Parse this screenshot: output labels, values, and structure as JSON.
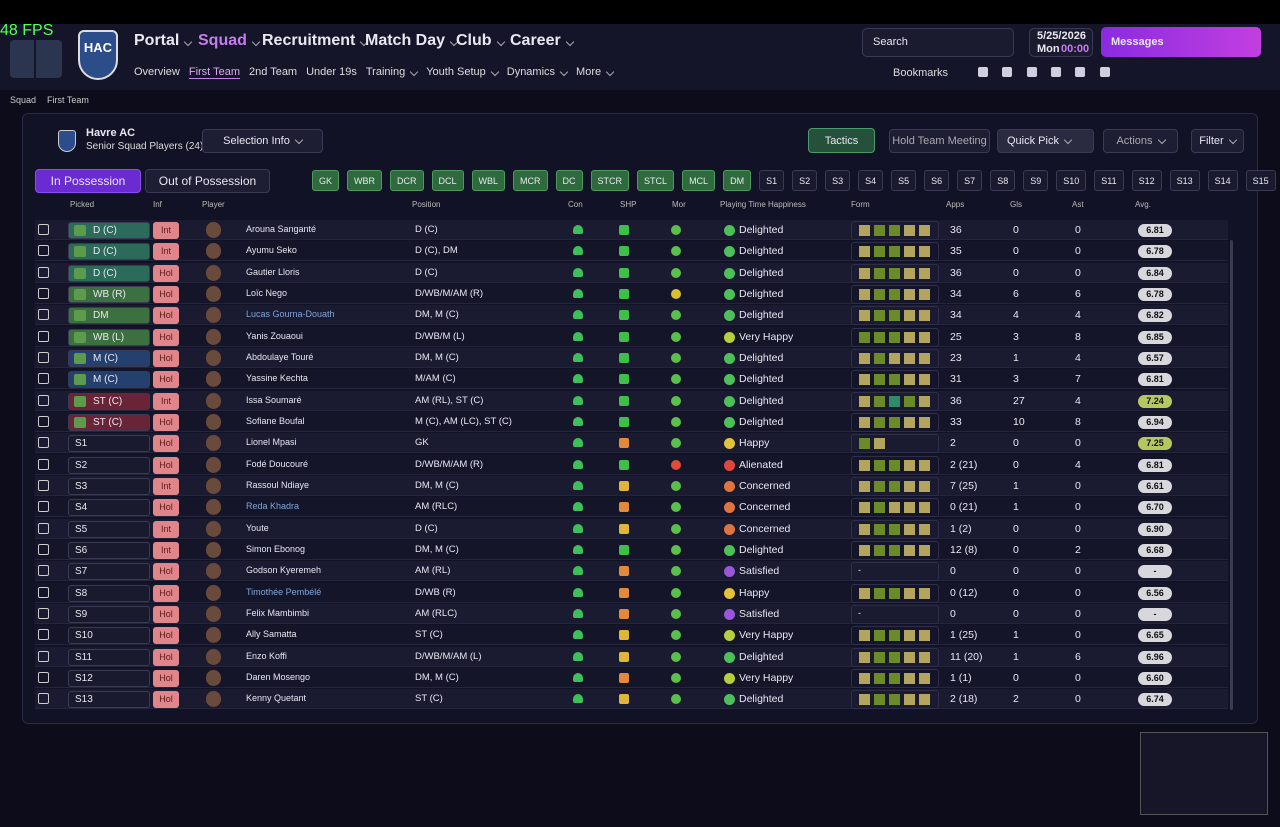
{
  "header": {
    "fps": "48 FPS",
    "logo": "HAC",
    "main_nav": [
      "Portal",
      "Squad",
      "Recruitment",
      "Match Day",
      "Club",
      "Career"
    ],
    "sub_nav": [
      "Overview",
      "First Team",
      "2nd Team",
      "Under 19s",
      "Training",
      "Youth Setup",
      "Dynamics",
      "More"
    ],
    "search": "Search",
    "date": "5/25/2026",
    "day": "Mon",
    "time": "00:00",
    "messages": "Messages",
    "bookmarks": "Bookmarks"
  },
  "breadcrumb": [
    "Squad",
    "First Team"
  ],
  "team": {
    "name": "Havre AC",
    "subtitle": "Senior Squad Players (24)"
  },
  "buttons": {
    "selection_info": "Selection Info",
    "tactics": "Tactics",
    "hold_meeting": "Hold Team Meeting",
    "quick_pick": "Quick Pick",
    "actions": "Actions",
    "filter": "Filter"
  },
  "tabs": [
    "In Possession",
    "Out of Possession"
  ],
  "positions": [
    "GK",
    "WBR",
    "DCR",
    "DCL",
    "WBL",
    "MCR",
    "DC",
    "STCR",
    "STCL",
    "MCL",
    "DM",
    "S1",
    "S2",
    "S3",
    "S4",
    "S5",
    "S6",
    "S7",
    "S8",
    "S9",
    "S10",
    "S11",
    "S12",
    "S13",
    "S14",
    "S15"
  ],
  "filled_positions": 11,
  "columns": [
    "Picked",
    "Inf",
    "Player",
    "Position",
    "Con",
    "SHP",
    "Mor",
    "Playing Time Happiness",
    "Form",
    "Apps",
    "Gls",
    "Ast",
    "Avg."
  ],
  "happiness_colors": {
    "Delighted": "#4fbf5a",
    "Very Happy": "#b6cf3c",
    "Happy": "#e3c23a",
    "Satisfied": "#9a55d8",
    "Concerned": "#e0733e",
    "Alienated": "#e0463e"
  },
  "rows": [
    {
      "picked": "D (C)",
      "pc": "#2c6a5a",
      "inf": "Int",
      "player": "Arouna Sanganté",
      "position": "D (C)",
      "shp": "c",
      "mor": "g",
      "happiness": "Delighted",
      "form": "yggyy",
      "apps": "36",
      "gls": "0",
      "ast": "0",
      "avg": "6.81"
    },
    {
      "picked": "D (C)",
      "pc": "#2c6a5a",
      "inf": "Int",
      "player": "Ayumu Seko",
      "position": "D (C), DM",
      "shp": "c",
      "mor": "g",
      "happiness": "Delighted",
      "form": "yggyy",
      "apps": "35",
      "gls": "0",
      "ast": "0",
      "avg": "6.78"
    },
    {
      "picked": "D (C)",
      "pc": "#2c6a5a",
      "inf": "Hol",
      "player": "Gautier Lloris",
      "position": "D (C)",
      "shp": "c",
      "mor": "g",
      "happiness": "Delighted",
      "form": "yggyy",
      "apps": "36",
      "gls": "0",
      "ast": "0",
      "avg": "6.84"
    },
    {
      "picked": "WB (R)",
      "pc": "#3c7040",
      "inf": "Hol",
      "player": "Loïc Nego",
      "position": "D/WB/M/AM (R)",
      "shp": "c",
      "mor": "y",
      "happiness": "Delighted",
      "form": "yggyy",
      "apps": "34",
      "gls": "6",
      "ast": "6",
      "avg": "6.78"
    },
    {
      "picked": "DM",
      "pc": "#3c7040",
      "inf": "Hol",
      "player": "Lucas Gourna-Douath",
      "color": "#7fa6d8",
      "position": "DM, M (C)",
      "shp": "c",
      "mor": "g",
      "happiness": "Delighted",
      "form": "yggyy",
      "apps": "34",
      "gls": "4",
      "ast": "4",
      "avg": "6.82"
    },
    {
      "picked": "WB (L)",
      "pc": "#3c7040",
      "inf": "Hol",
      "player": "Yanis Zouaoui",
      "position": "D/WB/M (L)",
      "shp": "c",
      "mor": "g",
      "happiness": "Very Happy",
      "form": "gggyy",
      "apps": "25",
      "gls": "3",
      "ast": "8",
      "avg": "6.85"
    },
    {
      "picked": "M (C)",
      "pc": "#24406e",
      "inf": "Hol",
      "player": "Abdoulaye Touré",
      "position": "DM, M (C)",
      "shp": "u",
      "mor": "g",
      "happiness": "Delighted",
      "form": "ygyyy",
      "apps": "23",
      "gls": "1",
      "ast": "4",
      "avg": "6.57"
    },
    {
      "picked": "M (C)",
      "pc": "#24406e",
      "inf": "Hol",
      "player": "Yassine Kechta",
      "position": "M/AM (C)",
      "shp": "c",
      "mor": "g",
      "happiness": "Delighted",
      "form": "yggyy",
      "apps": "31",
      "gls": "3",
      "ast": "7",
      "avg": "6.81"
    },
    {
      "picked": "ST (C)",
      "pc": "#6a2438",
      "inf": "Int",
      "player": "Issa Soumaré",
      "position": "AM (RL), ST (C)",
      "shp": "c",
      "mor": "g",
      "happiness": "Delighted",
      "form": "ygtgy",
      "apps": "36",
      "gls": "27",
      "ast": "4",
      "avg": "7.24"
    },
    {
      "picked": "ST (C)",
      "pc": "#6a2438",
      "inf": "Hol",
      "player": "Sofiane Boufal",
      "position": "M (C), AM (LC), ST (C)",
      "shp": "c",
      "mor": "g",
      "happiness": "Delighted",
      "form": "yggyy",
      "apps": "33",
      "gls": "10",
      "ast": "8",
      "avg": "6.94"
    },
    {
      "picked": "S1",
      "inf": "Hol",
      "player": "Lionel Mpasi",
      "position": "GK",
      "shp": "o",
      "mor": "g",
      "happiness": "Happy",
      "form": "gy",
      "apps": "2",
      "gls": "0",
      "ast": "0",
      "avg": "7.25"
    },
    {
      "picked": "S2",
      "inf": "Hol",
      "player": "Fodé Doucouré",
      "position": "D/WB/M/AM (R)",
      "shp": "u",
      "mor": "r",
      "happiness": "Alienated",
      "form": "yggyy",
      "apps": "2 (21)",
      "gls": "0",
      "ast": "4",
      "avg": "6.81"
    },
    {
      "picked": "S3",
      "inf": "Int",
      "player": "Rassoul Ndiaye",
      "position": "DM, M (C)",
      "shp": "y",
      "mor": "g",
      "happiness": "Concerned",
      "form": "yggyy",
      "apps": "7 (25)",
      "gls": "1",
      "ast": "0",
      "avg": "6.61"
    },
    {
      "picked": "S4",
      "inf": "Hol",
      "player": "Reda Khadra",
      "color": "#7fa6d8",
      "position": "AM (RLC)",
      "shp": "o",
      "mor": "g",
      "happiness": "Concerned",
      "form": "ygyyy",
      "apps": "0 (21)",
      "gls": "1",
      "ast": "0",
      "avg": "6.70"
    },
    {
      "picked": "S5",
      "inf": "Int",
      "player": "Youte",
      "position": "D (C)",
      "shp": "y",
      "mor": "g",
      "happiness": "Concerned",
      "form": "yggyy",
      "apps": "1 (2)",
      "gls": "0",
      "ast": "0",
      "avg": "6.90"
    },
    {
      "picked": "S6",
      "inf": "Int",
      "player": "Simon Ebonog",
      "position": "DM, M (C)",
      "shp": "u",
      "mor": "g",
      "happiness": "Delighted",
      "form": "yggyy",
      "apps": "12 (8)",
      "gls": "0",
      "ast": "2",
      "avg": "6.68"
    },
    {
      "picked": "S7",
      "inf": "Hol",
      "player": "Godson Kyeremeh",
      "position": "AM (RL)",
      "shp": "o",
      "mor": "g",
      "happiness": "Satisfied",
      "form": "-",
      "apps": "0",
      "gls": "0",
      "ast": "0",
      "avg": "-"
    },
    {
      "picked": "S8",
      "inf": "Hol",
      "player": "Timothée Pembélé",
      "color": "#7fa6d8",
      "position": "D/WB (R)",
      "shp": "o",
      "mor": "g",
      "happiness": "Happy",
      "form": "yggyy",
      "apps": "0 (12)",
      "gls": "0",
      "ast": "0",
      "avg": "6.56"
    },
    {
      "picked": "S9",
      "inf": "Hol",
      "player": "Felix Mambimbi",
      "position": "AM (RLC)",
      "shp": "o",
      "mor": "g",
      "happiness": "Satisfied",
      "form": "-",
      "apps": "0",
      "gls": "0",
      "ast": "0",
      "avg": "-"
    },
    {
      "picked": "S10",
      "inf": "Hol",
      "player": "Ally Samatta",
      "position": "ST (C)",
      "shp": "y",
      "mor": "g",
      "happiness": "Very Happy",
      "form": "yggyy",
      "apps": "1 (25)",
      "gls": "1",
      "ast": "0",
      "avg": "6.65"
    },
    {
      "picked": "S11",
      "inf": "Hol",
      "player": "Enzo Koffi",
      "position": "D/WB/M/AM (L)",
      "shp": "y",
      "mor": "g",
      "happiness": "Delighted",
      "form": "yggyy",
      "apps": "11 (20)",
      "gls": "1",
      "ast": "6",
      "avg": "6.96"
    },
    {
      "picked": "S12",
      "inf": "Hol",
      "player": "Daren Mosengo",
      "position": "DM, M (C)",
      "shp": "o",
      "mor": "g",
      "happiness": "Very Happy",
      "form": "yggyy",
      "apps": "1 (1)",
      "gls": "0",
      "ast": "0",
      "avg": "6.60"
    },
    {
      "picked": "S13",
      "inf": "Hol",
      "player": "Kenny Quetant",
      "position": "ST (C)",
      "shp": "y",
      "mor": "g",
      "happiness": "Delighted",
      "form": "yggyy",
      "apps": "2 (18)",
      "gls": "2",
      "ast": "0",
      "avg": "6.74"
    }
  ]
}
